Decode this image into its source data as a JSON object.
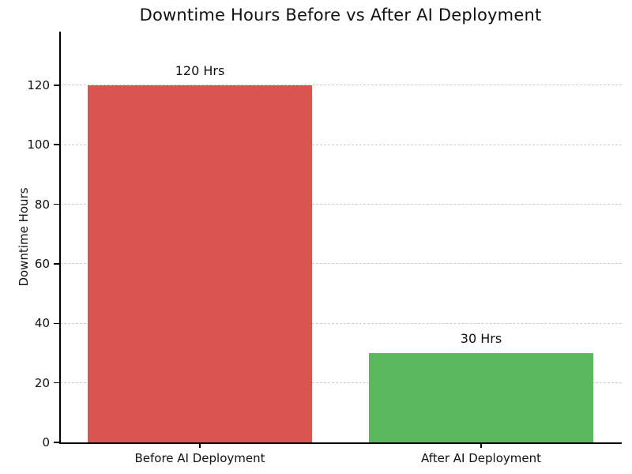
{
  "title": "Downtime Hours Before vs After AI Deployment",
  "chart_data": {
    "type": "bar",
    "title": "Downtime Hours Before vs After AI Deployment",
    "categories": [
      "Before AI Deployment",
      "After AI Deployment"
    ],
    "values": [
      120,
      30
    ],
    "bar_labels": [
      "120 Hrs",
      "30 Hrs"
    ],
    "bar_colors": [
      "#d9534f",
      "#5cb85c"
    ],
    "xlabel": "",
    "ylabel": "Downtime Hours",
    "yticks": [
      0,
      20,
      40,
      60,
      80,
      100,
      120
    ],
    "ylim": [
      0,
      138
    ],
    "bar_width_fraction": 0.8,
    "grid": "horizontal-dashed",
    "grid_color": "#cccccc",
    "legend": "none",
    "background_color": "#ffffff",
    "spines": [
      "left",
      "bottom"
    ]
  }
}
